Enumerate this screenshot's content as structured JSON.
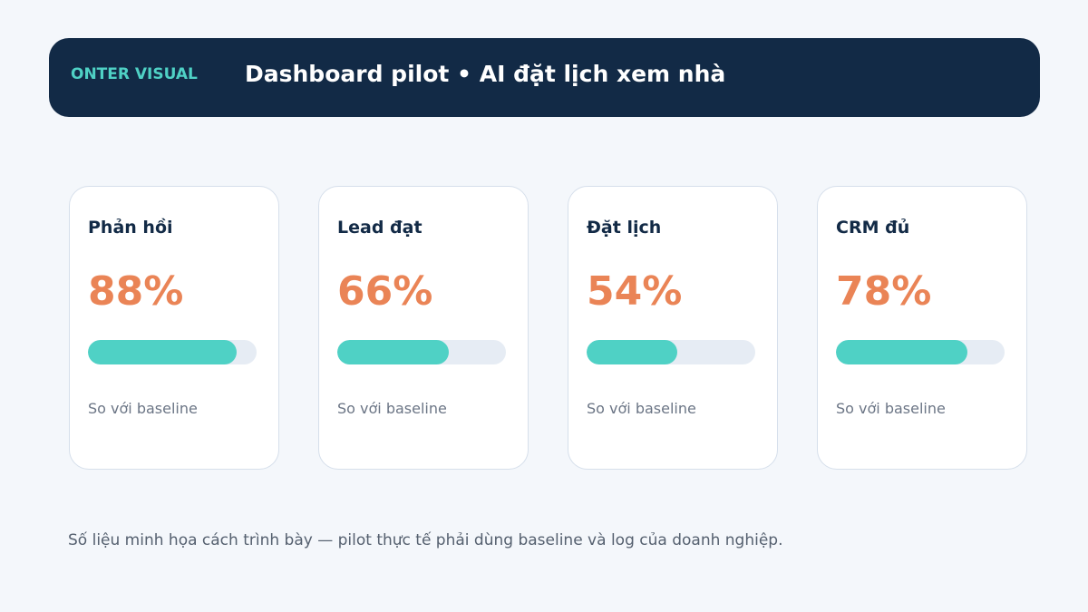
{
  "header": {
    "brand": "ONTER VISUAL",
    "title": "Dashboard pilot • AI đặt lịch xem nhà"
  },
  "cards": [
    {
      "label": "Phản hồi",
      "value": "88%",
      "progress": 0.88,
      "subtitle": "So với baseline"
    },
    {
      "label": "Lead đạt",
      "value": "66%",
      "progress": 0.66,
      "subtitle": "So với baseline"
    },
    {
      "label": "Đặt lịch",
      "value": "54%",
      "progress": 0.54,
      "subtitle": "So với baseline"
    },
    {
      "label": "CRM đủ",
      "value": "78%",
      "progress": 0.78,
      "subtitle": "So với baseline"
    }
  ],
  "footnote": "Số liệu minh họa cách trình bày — pilot thực tế phải dùng baseline và log của doanh nghiệp.",
  "colors": {
    "header_bg": "#122a46",
    "brand": "#4fd1c5",
    "value": "#ea8456",
    "bar_fill": "#4fd1c5",
    "bar_track": "#e6ecf4"
  }
}
